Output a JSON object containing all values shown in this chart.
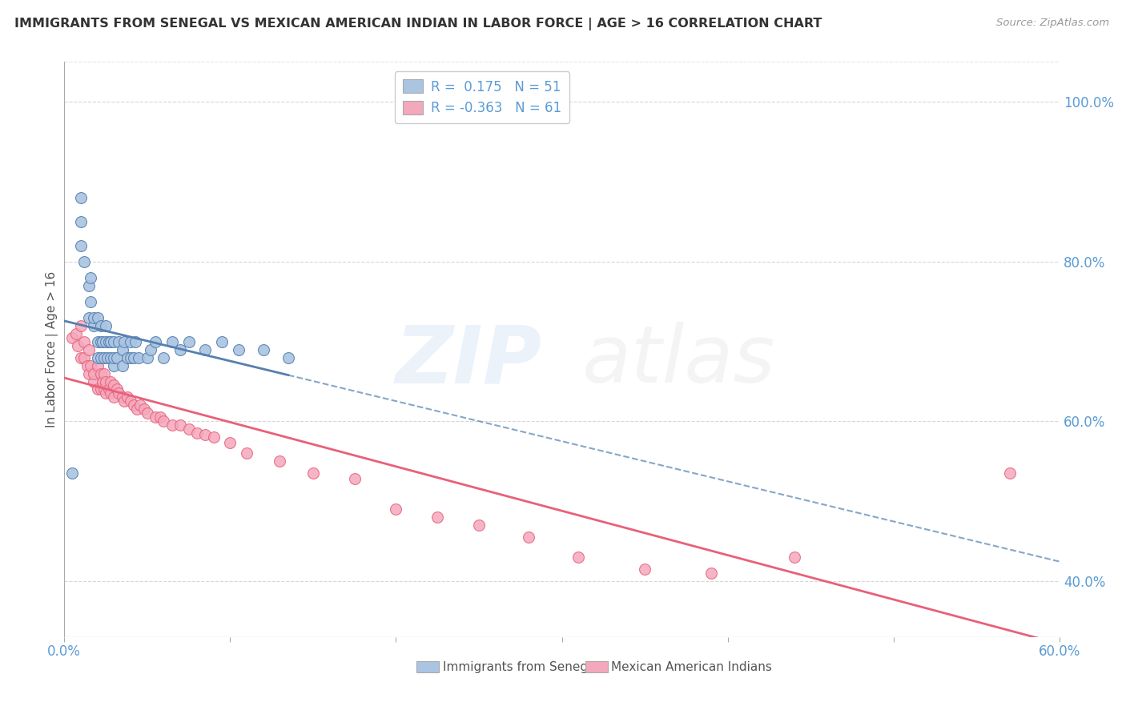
{
  "title": "IMMIGRANTS FROM SENEGAL VS MEXICAN AMERICAN INDIAN IN LABOR FORCE | AGE > 16 CORRELATION CHART",
  "source_text": "Source: ZipAtlas.com",
  "ylabel": "In Labor Force | Age > 16",
  "xlim": [
    0.0,
    0.6
  ],
  "ylim": [
    0.33,
    1.05
  ],
  "yticks_right": [
    0.4,
    0.6,
    0.8,
    1.0
  ],
  "ytick_right_labels": [
    "40.0%",
    "60.0%",
    "80.0%",
    "100.0%"
  ],
  "r_senegal": 0.175,
  "n_senegal": 51,
  "r_mexican": -0.363,
  "n_mexican": 61,
  "color_senegal": "#aac4e2",
  "color_mexican": "#f4a8bc",
  "color_senegal_line": "#5580b0",
  "color_mexican_line": "#e8607a",
  "senegal_x": [
    0.005,
    0.01,
    0.01,
    0.01,
    0.012,
    0.015,
    0.015,
    0.016,
    0.016,
    0.018,
    0.018,
    0.02,
    0.02,
    0.02,
    0.022,
    0.022,
    0.022,
    0.023,
    0.024,
    0.025,
    0.025,
    0.026,
    0.027,
    0.028,
    0.028,
    0.03,
    0.03,
    0.03,
    0.032,
    0.033,
    0.035,
    0.035,
    0.036,
    0.038,
    0.04,
    0.04,
    0.042,
    0.043,
    0.045,
    0.05,
    0.052,
    0.055,
    0.06,
    0.065,
    0.07,
    0.075,
    0.085,
    0.095,
    0.105,
    0.12,
    0.135
  ],
  "senegal_y": [
    0.535,
    0.88,
    0.85,
    0.82,
    0.8,
    0.73,
    0.77,
    0.75,
    0.78,
    0.72,
    0.73,
    0.68,
    0.7,
    0.73,
    0.68,
    0.7,
    0.72,
    0.7,
    0.68,
    0.7,
    0.72,
    0.68,
    0.7,
    0.68,
    0.7,
    0.67,
    0.68,
    0.7,
    0.68,
    0.7,
    0.67,
    0.69,
    0.7,
    0.68,
    0.68,
    0.7,
    0.68,
    0.7,
    0.68,
    0.68,
    0.69,
    0.7,
    0.68,
    0.7,
    0.69,
    0.7,
    0.69,
    0.7,
    0.69,
    0.69,
    0.68
  ],
  "mexican_x": [
    0.005,
    0.007,
    0.008,
    0.01,
    0.01,
    0.012,
    0.012,
    0.014,
    0.015,
    0.015,
    0.016,
    0.018,
    0.018,
    0.02,
    0.02,
    0.022,
    0.022,
    0.023,
    0.024,
    0.024,
    0.025,
    0.025,
    0.027,
    0.028,
    0.028,
    0.03,
    0.03,
    0.032,
    0.033,
    0.035,
    0.036,
    0.038,
    0.04,
    0.042,
    0.044,
    0.046,
    0.048,
    0.05,
    0.055,
    0.058,
    0.06,
    0.065,
    0.07,
    0.075,
    0.08,
    0.085,
    0.09,
    0.1,
    0.11,
    0.13,
    0.15,
    0.175,
    0.2,
    0.225,
    0.25,
    0.28,
    0.31,
    0.35,
    0.39,
    0.44,
    0.57
  ],
  "mexican_y": [
    0.705,
    0.71,
    0.695,
    0.68,
    0.72,
    0.68,
    0.7,
    0.67,
    0.66,
    0.69,
    0.67,
    0.65,
    0.66,
    0.64,
    0.67,
    0.64,
    0.66,
    0.65,
    0.64,
    0.66,
    0.635,
    0.65,
    0.64,
    0.635,
    0.65,
    0.63,
    0.645,
    0.64,
    0.635,
    0.63,
    0.625,
    0.63,
    0.625,
    0.62,
    0.615,
    0.62,
    0.615,
    0.61,
    0.605,
    0.605,
    0.6,
    0.595,
    0.595,
    0.59,
    0.585,
    0.583,
    0.58,
    0.573,
    0.56,
    0.55,
    0.535,
    0.528,
    0.49,
    0.48,
    0.47,
    0.455,
    0.43,
    0.415,
    0.41,
    0.43,
    0.535
  ],
  "background_color": "#ffffff",
  "grid_color": "#cccccc"
}
